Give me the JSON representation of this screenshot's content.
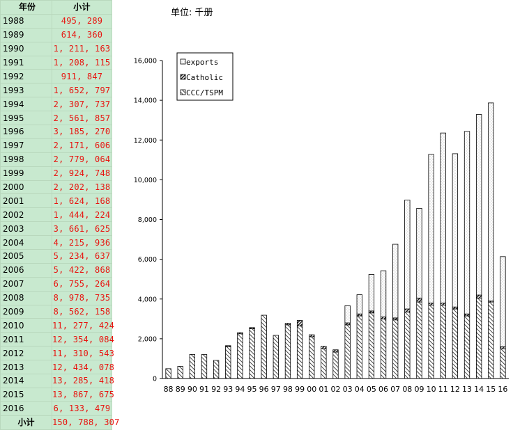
{
  "table": {
    "header": {
      "year": "年份",
      "value": "小计"
    },
    "rows": [
      {
        "year": "1988",
        "value": "495, 289"
      },
      {
        "year": "1989",
        "value": "614, 360"
      },
      {
        "year": "1990",
        "value": "1, 211, 163"
      },
      {
        "year": "1991",
        "value": "1, 208, 115"
      },
      {
        "year": "1992",
        "value": "911, 847"
      },
      {
        "year": "1993",
        "value": "1, 652, 797"
      },
      {
        "year": "1994",
        "value": "2, 307, 737"
      },
      {
        "year": "1995",
        "value": "2, 561, 857"
      },
      {
        "year": "1996",
        "value": "3, 185, 270"
      },
      {
        "year": "1997",
        "value": "2, 171, 606"
      },
      {
        "year": "1998",
        "value": "2, 779, 064"
      },
      {
        "year": "1999",
        "value": "2, 924, 748"
      },
      {
        "year": "2000",
        "value": "2, 202, 138"
      },
      {
        "year": "2001",
        "value": "1, 624, 168"
      },
      {
        "year": "2002",
        "value": "1, 444, 224"
      },
      {
        "year": "2003",
        "value": "3, 661, 625"
      },
      {
        "year": "2004",
        "value": "4, 215, 936"
      },
      {
        "year": "2005",
        "value": "5, 234, 637"
      },
      {
        "year": "2006",
        "value": "5, 422, 868"
      },
      {
        "year": "2007",
        "value": "6, 755, 264"
      },
      {
        "year": "2008",
        "value": "8, 978, 735"
      },
      {
        "year": "2009",
        "value": "8, 562, 158"
      },
      {
        "year": "2010",
        "value": "11, 277, 424"
      },
      {
        "year": "2011",
        "value": "12, 354, 084"
      },
      {
        "year": "2012",
        "value": "11, 310, 543"
      },
      {
        "year": "2013",
        "value": "12, 434, 078"
      },
      {
        "year": "2014",
        "value": "13, 285, 418"
      },
      {
        "year": "2015",
        "value": "13, 867, 675"
      },
      {
        "year": "2016",
        "value": "6, 133, 479"
      }
    ],
    "total": {
      "year": "小计",
      "value": "150, 788, 307"
    }
  },
  "colors": {
    "table_bg": "#c8e9cf",
    "value_text": "#e8140f",
    "bar_outline": "#000000"
  },
  "chart_data": {
    "type": "bar",
    "stacked": true,
    "unit_label": "单位: 千册",
    "categories": [
      "88",
      "89",
      "90",
      "91",
      "92",
      "93",
      "94",
      "95",
      "96",
      "97",
      "98",
      "99",
      "00",
      "01",
      "02",
      "03",
      "04",
      "05",
      "06",
      "07",
      "08",
      "09",
      "10",
      "11",
      "12",
      "13",
      "14",
      "15",
      "16"
    ],
    "series": [
      {
        "name": "CCC/TSPM",
        "values": [
          495,
          614,
          1211,
          1208,
          912,
          1600,
          2250,
          2500,
          3185,
          2172,
          2700,
          2650,
          2100,
          1500,
          1330,
          2700,
          3150,
          3300,
          3000,
          2950,
          3350,
          3850,
          3700,
          3700,
          3500,
          3150,
          4050,
          3850,
          1500
        ]
      },
      {
        "name": "Catholic",
        "values": [
          0,
          0,
          0,
          0,
          0,
          53,
          58,
          62,
          0,
          0,
          79,
          275,
          102,
          124,
          114,
          100,
          100,
          100,
          100,
          100,
          150,
          200,
          100,
          100,
          100,
          100,
          150,
          50,
          100
        ]
      },
      {
        "name": "exports",
        "values": [
          0,
          0,
          0,
          0,
          0,
          0,
          0,
          0,
          0,
          0,
          0,
          0,
          0,
          0,
          0,
          862,
          966,
          1835,
          2323,
          3705,
          5479,
          4512,
          7477,
          8554,
          7711,
          9184,
          9085,
          9968,
          4533
        ]
      }
    ],
    "ylim": [
      0,
      16000
    ],
    "yticks": [
      "0",
      "2,000",
      "4,000",
      "6,000",
      "8,000",
      "10,000",
      "12,000",
      "14,000",
      "16,000"
    ],
    "ytick_values": [
      0,
      2000,
      4000,
      6000,
      8000,
      10000,
      12000,
      14000,
      16000
    ],
    "legend": {
      "placement": "top-left",
      "entries": [
        "exports",
        "Catholic",
        "CCC/TSPM"
      ]
    },
    "grid": false
  }
}
